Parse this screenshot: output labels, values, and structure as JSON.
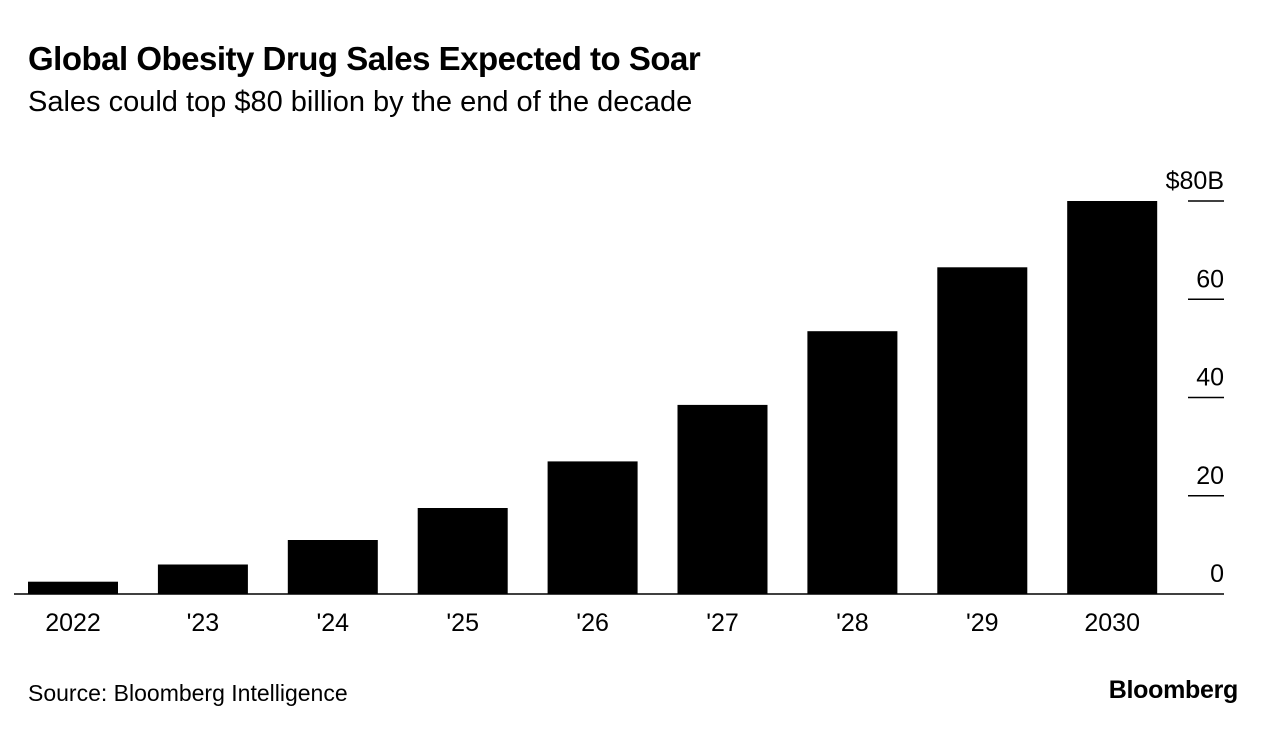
{
  "chart_data": {
    "type": "bar",
    "title": "Global Obesity Drug Sales Expected to Soar",
    "subtitle": "Sales could top $80 billion by the end of the decade",
    "categories": [
      "2022",
      "'23",
      "'24",
      "'25",
      "'26",
      "'27",
      "'28",
      "'29",
      "2030"
    ],
    "series": [
      {
        "name": "Global obesity drug sales ($B)",
        "values": [
          2.5,
          6,
          11,
          17.5,
          27,
          38.5,
          53.5,
          66.5,
          80
        ]
      }
    ],
    "ylim": [
      0,
      80
    ],
    "yticks": [
      0,
      20,
      40,
      60,
      80
    ],
    "ytick_labels": [
      "0",
      "20",
      "40",
      "60",
      "$80B"
    ],
    "xlabel": "",
    "ylabel": "",
    "grid": false,
    "y_axis_position": "right",
    "bar_color": "#000000"
  },
  "source": "Source: Bloomberg Intelligence",
  "brand": "Bloomberg"
}
